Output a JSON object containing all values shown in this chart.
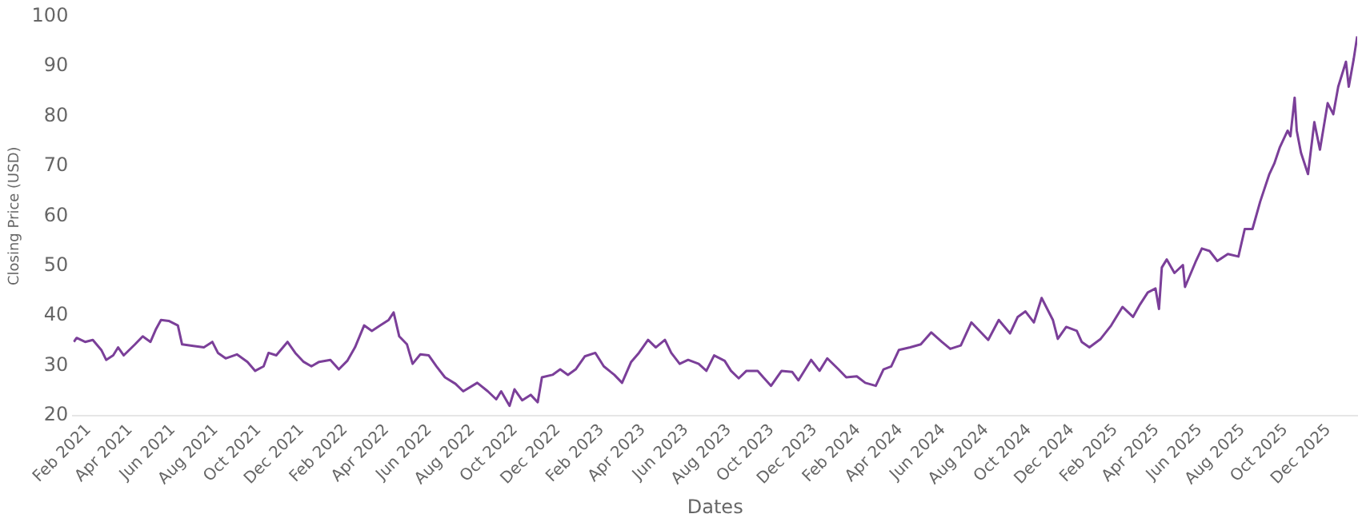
{
  "chart_data": {
    "type": "line",
    "xlabel": "Dates",
    "ylabel": "Closing Price (USD)",
    "grid": false,
    "legend": false,
    "marker": "none",
    "line_style": "solid",
    "xlim": [
      "2021-01-10",
      "2026-01-11"
    ],
    "ylim": [
      20,
      100
    ],
    "yticks": [
      20,
      30,
      40,
      50,
      60,
      70,
      80,
      90,
      100
    ],
    "xticks": [
      {
        "value": "2021-02-01",
        "label": "Feb 2021"
      },
      {
        "value": "2021-04-01",
        "label": "Apr 2021"
      },
      {
        "value": "2021-06-01",
        "label": "Jun 2021"
      },
      {
        "value": "2021-08-01",
        "label": "Aug 2021"
      },
      {
        "value": "2021-10-01",
        "label": "Oct 2021"
      },
      {
        "value": "2021-12-01",
        "label": "Dec 2021"
      },
      {
        "value": "2022-02-01",
        "label": "Feb 2022"
      },
      {
        "value": "2022-04-01",
        "label": "Apr 2022"
      },
      {
        "value": "2022-06-01",
        "label": "Jun 2022"
      },
      {
        "value": "2022-08-01",
        "label": "Aug 2022"
      },
      {
        "value": "2022-10-01",
        "label": "Oct 2022"
      },
      {
        "value": "2022-12-01",
        "label": "Dec 2022"
      },
      {
        "value": "2023-02-01",
        "label": "Feb 2023"
      },
      {
        "value": "2023-04-01",
        "label": "Apr 2023"
      },
      {
        "value": "2023-06-01",
        "label": "Jun 2023"
      },
      {
        "value": "2023-08-01",
        "label": "Aug 2023"
      },
      {
        "value": "2023-10-01",
        "label": "Oct 2023"
      },
      {
        "value": "2023-12-01",
        "label": "Dec 2023"
      },
      {
        "value": "2024-02-01",
        "label": "Feb 2024"
      },
      {
        "value": "2024-04-01",
        "label": "Apr 2024"
      },
      {
        "value": "2024-06-01",
        "label": "Jun 2024"
      },
      {
        "value": "2024-08-01",
        "label": "Aug 2024"
      },
      {
        "value": "2024-10-01",
        "label": "Oct 2024"
      },
      {
        "value": "2024-12-01",
        "label": "Dec 2024"
      },
      {
        "value": "2025-02-01",
        "label": "Feb 2025"
      },
      {
        "value": "2025-04-01",
        "label": "Apr 2025"
      },
      {
        "value": "2025-06-01",
        "label": "Jun 2025"
      },
      {
        "value": "2025-08-01",
        "label": "Aug 2025"
      },
      {
        "value": "2025-10-01",
        "label": "Oct 2025"
      },
      {
        "value": "2025-12-01",
        "label": "Dec 2025"
      }
    ],
    "x": [
      "2021-01-11",
      "2021-01-15",
      "2021-01-27",
      "2021-02-07",
      "2021-02-19",
      "2021-02-26",
      "2021-03-08",
      "2021-03-15",
      "2021-03-23",
      "2021-04-08",
      "2021-04-19",
      "2021-04-30",
      "2021-05-08",
      "2021-05-15",
      "2021-05-26",
      "2021-06-08",
      "2021-06-14",
      "2021-06-30",
      "2021-07-15",
      "2021-07-27",
      "2021-08-04",
      "2021-08-15",
      "2021-08-31",
      "2021-09-15",
      "2021-09-26",
      "2021-10-08",
      "2021-10-15",
      "2021-10-26",
      "2021-11-11",
      "2021-11-22",
      "2021-12-04",
      "2021-12-15",
      "2021-12-26",
      "2022-01-11",
      "2022-01-23",
      "2022-02-04",
      "2022-02-15",
      "2022-02-28",
      "2022-03-11",
      "2022-03-23",
      "2022-04-04",
      "2022-04-11",
      "2022-04-19",
      "2022-04-30",
      "2022-05-08",
      "2022-05-19",
      "2022-05-31",
      "2022-06-11",
      "2022-06-23",
      "2022-07-08",
      "2022-07-19",
      "2022-08-08",
      "2022-08-23",
      "2022-09-04",
      "2022-09-11",
      "2022-09-23",
      "2022-09-30",
      "2022-10-11",
      "2022-10-23",
      "2022-11-02",
      "2022-11-08",
      "2022-11-23",
      "2022-12-04",
      "2022-12-15",
      "2022-12-26",
      "2023-01-08",
      "2023-01-23",
      "2023-02-04",
      "2023-02-19",
      "2023-03-02",
      "2023-03-15",
      "2023-03-26",
      "2023-04-08",
      "2023-04-19",
      "2023-05-02",
      "2023-05-11",
      "2023-05-23",
      "2023-06-04",
      "2023-06-19",
      "2023-06-30",
      "2023-07-11",
      "2023-07-26",
      "2023-08-04",
      "2023-08-15",
      "2023-08-26",
      "2023-09-11",
      "2023-09-19",
      "2023-09-30",
      "2023-10-15",
      "2023-10-30",
      "2023-11-08",
      "2023-11-26",
      "2023-12-08",
      "2023-12-19",
      "2024-01-04",
      "2024-01-15",
      "2024-01-30",
      "2024-02-11",
      "2024-02-26",
      "2024-03-08",
      "2024-03-19",
      "2024-03-30",
      "2024-04-15",
      "2024-04-30",
      "2024-05-15",
      "2024-05-30",
      "2024-06-11",
      "2024-06-26",
      "2024-07-11",
      "2024-07-26",
      "2024-08-04",
      "2024-08-19",
      "2024-09-04",
      "2024-09-15",
      "2024-09-26",
      "2024-10-08",
      "2024-10-19",
      "2024-11-04",
      "2024-11-11",
      "2024-11-23",
      "2024-12-08",
      "2024-12-15",
      "2024-12-26",
      "2025-01-11",
      "2025-01-26",
      "2025-02-11",
      "2025-02-26",
      "2025-03-08",
      "2025-03-19",
      "2025-03-30",
      "2025-04-04",
      "2025-04-08",
      "2025-04-15",
      "2025-04-26",
      "2025-05-08",
      "2025-05-11",
      "2025-05-26",
      "2025-06-04",
      "2025-06-15",
      "2025-06-26",
      "2025-07-11",
      "2025-07-26",
      "2025-08-04",
      "2025-08-15",
      "2025-08-26",
      "2025-09-08",
      "2025-09-15",
      "2025-09-23",
      "2025-10-04",
      "2025-10-08",
      "2025-10-14",
      "2025-10-17",
      "2025-10-23",
      "2025-11-02",
      "2025-11-11",
      "2025-11-19",
      "2025-11-30",
      "2025-12-08",
      "2025-12-15",
      "2025-12-26",
      "2025-12-30",
      "2026-01-06",
      "2026-01-11"
    ],
    "series": [
      {
        "color": "#7b3f99",
        "values": [
          34.8,
          35.6,
          34.8,
          35.2,
          33.2,
          31.2,
          32.1,
          33.7,
          32.1,
          34.3,
          35.9,
          34.8,
          37.4,
          39.2,
          39.0,
          38.1,
          34.3,
          34.0,
          33.7,
          34.8,
          32.6,
          31.5,
          32.3,
          30.8,
          29.0,
          29.9,
          32.6,
          32.1,
          34.8,
          32.6,
          30.8,
          29.9,
          30.8,
          31.2,
          29.3,
          31.0,
          33.7,
          38.1,
          37.0,
          38.1,
          39.2,
          40.7,
          35.9,
          34.3,
          30.4,
          32.3,
          32.1,
          29.9,
          27.7,
          26.4,
          24.9,
          26.6,
          24.9,
          23.3,
          24.9,
          22.0,
          25.3,
          23.1,
          24.2,
          22.7,
          27.7,
          28.2,
          29.3,
          28.2,
          29.3,
          31.9,
          32.6,
          29.9,
          28.2,
          26.6,
          30.8,
          32.6,
          35.2,
          33.7,
          35.2,
          32.6,
          30.4,
          31.2,
          30.4,
          29.0,
          32.1,
          31.0,
          29.0,
          27.5,
          29.0,
          29.0,
          27.7,
          26.0,
          29.0,
          28.8,
          27.1,
          31.2,
          29.0,
          31.5,
          29.3,
          27.7,
          27.9,
          26.6,
          26.0,
          29.3,
          29.9,
          33.2,
          33.7,
          34.3,
          36.7,
          34.8,
          33.4,
          34.1,
          38.7,
          36.5,
          35.2,
          39.2,
          36.5,
          39.8,
          40.9,
          38.7,
          43.6,
          39.2,
          35.4,
          37.8,
          37.0,
          34.8,
          33.7,
          35.4,
          38.1,
          41.8,
          39.8,
          42.3,
          44.7,
          45.5,
          41.4,
          49.7,
          51.3,
          48.6,
          50.2,
          45.8,
          50.8,
          53.5,
          53.0,
          51.0,
          52.4,
          51.9,
          57.4,
          57.4,
          62.9,
          68.4,
          70.5,
          73.8,
          77.1,
          76.0,
          83.7,
          77.1,
          72.7,
          68.4,
          78.8,
          73.3,
          82.6,
          80.4,
          85.9,
          90.9,
          85.9,
          91.4,
          96.0
        ]
      }
    ]
  }
}
